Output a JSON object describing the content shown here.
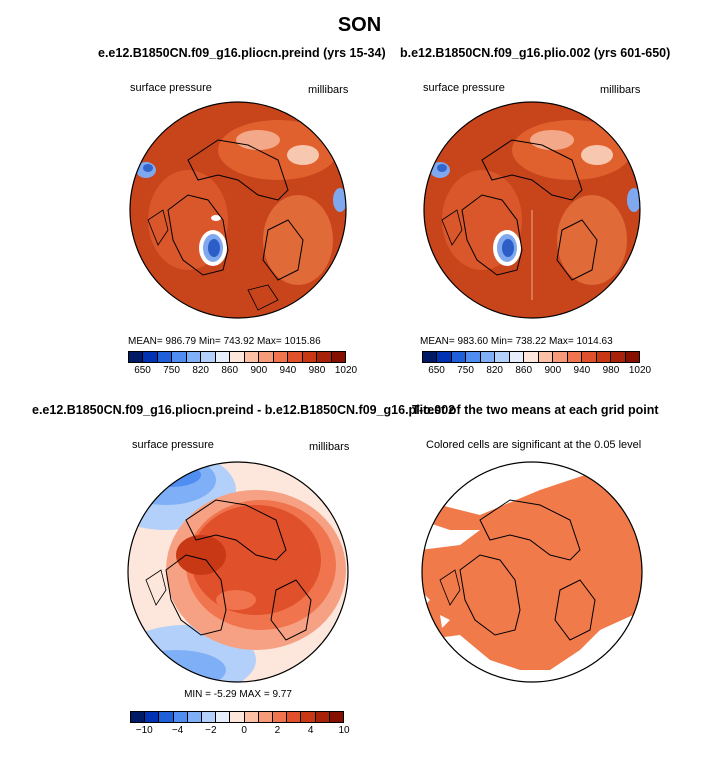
{
  "main_title": "SON",
  "panels": {
    "top_left": {
      "title": "e.e12.B1850CN.f09_g16.pliocn.preind (yrs 15-34)",
      "variable": "surface pressure",
      "units": "millibars",
      "stats": "MEAN= 986.79   Min= 743.92   Max= 1015.86",
      "colorbar_labels": [
        "650",
        "750",
        "820",
        "860",
        "900",
        "940",
        "980",
        "1020"
      ]
    },
    "top_right": {
      "title": "b.e12.B1850CN.f09_g16.plio.002 (yrs 601-650)",
      "variable": "surface pressure",
      "units": "millibars",
      "stats": "MEAN= 983.60   Min= 738.22   Max= 1014.63",
      "colorbar_labels": [
        "650",
        "750",
        "820",
        "860",
        "900",
        "940",
        "980",
        "1020"
      ]
    },
    "bottom_left": {
      "title": "e.e12.B1850CN.f09_g16.pliocn.preind - b.e12.B1850CN.f09_g16.plio.002",
      "variable": "surface pressure",
      "units": "millibars",
      "stats": "MIN =  -5.29  MAX =   9.77",
      "colorbar_labels": [
        "−10",
        "−4",
        "−2",
        "0",
        "2",
        "4",
        "10"
      ]
    },
    "bottom_right": {
      "title": "T-test of the two means at each grid point",
      "subtitle": "Colored cells are significant at the 0.05 level"
    }
  },
  "colors": {
    "pressure_scale": [
      "#001a66",
      "#0033b3",
      "#1f5fd9",
      "#4f8ef0",
      "#7fb0f7",
      "#b3d0fa",
      "#e6eefc",
      "#fde6dc",
      "#fbc0a6",
      "#f79a77",
      "#f0744d",
      "#e0502a",
      "#c83814",
      "#a8220a",
      "#861000"
    ],
    "diff_scale": [
      "#001a66",
      "#0033b3",
      "#1f5fd9",
      "#4f8ef0",
      "#7fb0f7",
      "#b3d0fa",
      "#e6eefc",
      "#fde6dc",
      "#fbc0a6",
      "#f79a77",
      "#f0744d",
      "#e0502a",
      "#c83814",
      "#a8220a",
      "#861000"
    ],
    "field_dark": "#c8441b",
    "field_mid": "#e0602e",
    "diff_orange": "#e0542a",
    "ttest_orange": "#f07a4a"
  }
}
